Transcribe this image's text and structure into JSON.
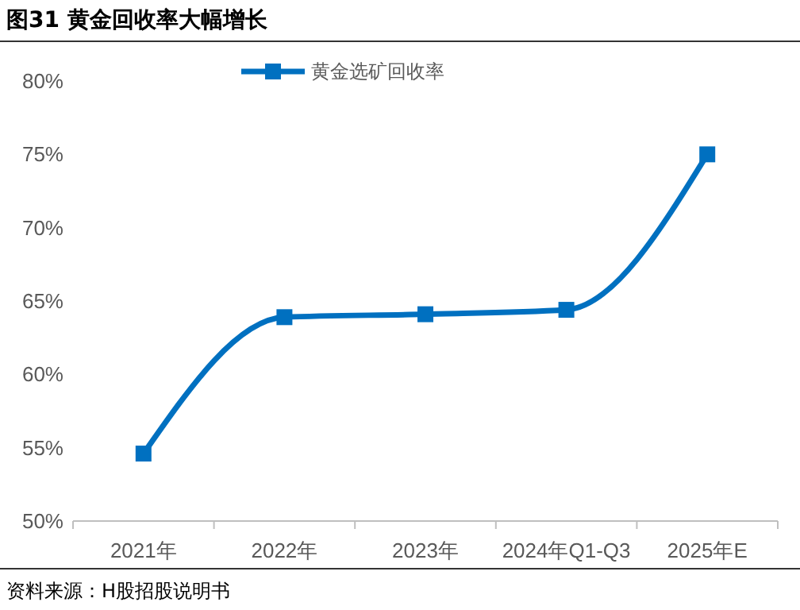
{
  "chart_data": {
    "type": "line",
    "title": "图31 黄金回收率大幅增长",
    "categories": [
      "2021年",
      "2022年",
      "2023年",
      "2024年Q1-Q3",
      "2025年E"
    ],
    "series": [
      {
        "name": "黄金选矿回收率",
        "color": "#0070c0",
        "values": [
          54.6,
          63.9,
          64.1,
          64.4,
          75.0
        ]
      }
    ],
    "ylim": [
      50,
      80
    ],
    "yticks": [
      {
        "value": 50,
        "label": "50%"
      },
      {
        "value": 55,
        "label": "55%"
      },
      {
        "value": 60,
        "label": "60%"
      },
      {
        "value": 65,
        "label": "65%"
      },
      {
        "value": 70,
        "label": "70%"
      },
      {
        "value": 75,
        "label": "75%"
      },
      {
        "value": 80,
        "label": "80%"
      }
    ],
    "grid": false,
    "legend": "top",
    "marker": "square",
    "line_style": "solid",
    "annotations": [
      "资料来源：H股招股说明书"
    ]
  }
}
